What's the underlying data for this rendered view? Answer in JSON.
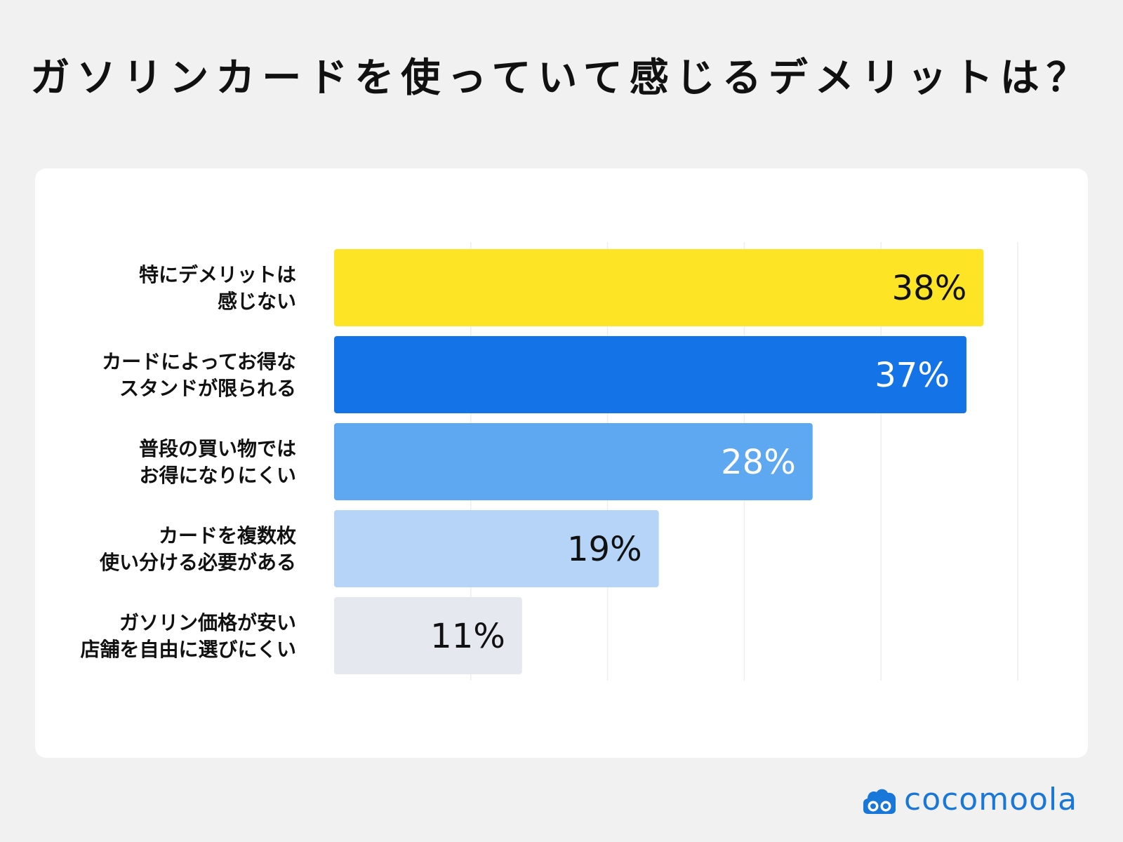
{
  "header": {
    "title": "ガソリンカードを使っていて感じるデメリットは？"
  },
  "chart_data": {
    "type": "bar",
    "orientation": "horizontal",
    "categories": [
      [
        "特にデメリットは",
        "感じない"
      ],
      [
        "カードによってお得な",
        "スタンドが限られる"
      ],
      [
        "普段の買い物では",
        "お得になりにくい"
      ],
      [
        "カードを複数枚",
        "使い分ける必要がある"
      ],
      [
        "ガソリン価格が安い",
        "店舗を自由に選びにくい"
      ]
    ],
    "values": [
      38,
      37,
      28,
      19,
      11
    ],
    "value_labels": [
      "38%",
      "37%",
      "28%",
      "19%",
      "11%"
    ],
    "colors": [
      "#fde526",
      "#1473e6",
      "#5ea8f2",
      "#b5d4f8",
      "#e5e9ef"
    ],
    "label_colors": [
      "#111111",
      "#ffffff",
      "#ffffff",
      "#111111",
      "#111111"
    ],
    "xlim": [
      0,
      40
    ],
    "gridlines": [
      0,
      8,
      16,
      24,
      32,
      40
    ],
    "grid": true,
    "legend": "none"
  },
  "brand": {
    "name": "cocomoola",
    "color": "#1877d9",
    "icon": "cloud-face-logo-icon"
  }
}
